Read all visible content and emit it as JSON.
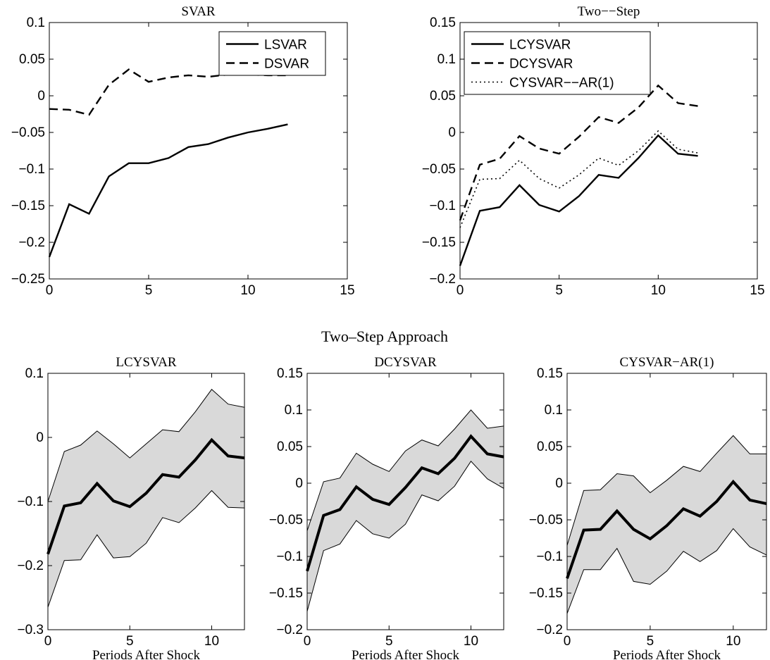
{
  "figure_title": "Two–Step Approach",
  "chart_data": [
    {
      "type": "line",
      "title": "SVAR",
      "xlabel": "",
      "ylabel": "",
      "xlim": [
        0,
        15
      ],
      "ylim": [
        -0.25,
        0.1
      ],
      "xticks": [
        0,
        5,
        10,
        15
      ],
      "xtick_labels": [
        "0",
        "5",
        "10",
        "15"
      ],
      "yticks": [
        -0.25,
        -0.2,
        -0.15,
        -0.1,
        -0.05,
        0,
        0.05,
        0.1
      ],
      "ytick_labels": [
        "−0.25",
        "−0.2",
        "−0.15",
        "−0.1",
        "−0.05",
        "0",
        "0.05",
        "0.1"
      ],
      "legend_position": "top-right",
      "x": [
        0,
        1,
        2,
        3,
        4,
        5,
        6,
        7,
        8,
        9,
        10,
        11,
        12
      ],
      "series": [
        {
          "name": "LSVAR",
          "style": "solid",
          "values": [
            -0.22,
            -0.148,
            -0.161,
            -0.11,
            -0.092,
            -0.092,
            -0.085,
            -0.07,
            -0.066,
            -0.057,
            -0.05,
            -0.045,
            -0.039
          ]
        },
        {
          "name": "DSVAR",
          "style": "dashed",
          "values": [
            -0.018,
            -0.019,
            -0.026,
            0.015,
            0.036,
            0.019,
            0.025,
            0.028,
            0.026,
            0.029,
            0.029,
            0.028,
            0.028
          ]
        }
      ]
    },
    {
      "type": "line",
      "title": "Two−−Step",
      "xlabel": "",
      "ylabel": "",
      "xlim": [
        0,
        15
      ],
      "ylim": [
        -0.2,
        0.15
      ],
      "xticks": [
        0,
        5,
        10,
        15
      ],
      "xtick_labels": [
        "0",
        "5",
        "10",
        "15"
      ],
      "yticks": [
        -0.2,
        -0.15,
        -0.1,
        -0.05,
        0,
        0.05,
        0.1,
        0.15
      ],
      "ytick_labels": [
        "−0.2",
        "−0.15",
        "−0.1",
        "−0.05",
        "0",
        "0.05",
        "0.1",
        "0.15"
      ],
      "legend_position": "top-left",
      "x": [
        0,
        1,
        2,
        3,
        4,
        5,
        6,
        7,
        8,
        9,
        10,
        11,
        12
      ],
      "series": [
        {
          "name": "LCYSVAR",
          "style": "solid",
          "values": [
            -0.182,
            -0.107,
            -0.102,
            -0.072,
            -0.099,
            -0.108,
            -0.087,
            -0.058,
            -0.062,
            -0.035,
            -0.004,
            -0.029,
            -0.032
          ]
        },
        {
          "name": "DCYSVAR",
          "style": "dashed",
          "values": [
            -0.12,
            -0.044,
            -0.036,
            -0.005,
            -0.022,
            -0.029,
            -0.006,
            0.021,
            0.013,
            0.034,
            0.064,
            0.04,
            0.036
          ]
        },
        {
          "name": "CYSVAR−−AR(1)",
          "style": "dotted",
          "values": [
            -0.13,
            -0.064,
            -0.063,
            -0.038,
            -0.063,
            -0.076,
            -0.058,
            -0.035,
            -0.045,
            -0.025,
            0.002,
            -0.023,
            -0.028
          ]
        }
      ]
    },
    {
      "type": "area",
      "title": "LCYSVAR",
      "xlabel": "Periods After Shock",
      "ylabel": "",
      "xlim": [
        0,
        12
      ],
      "ylim": [
        -0.3,
        0.1
      ],
      "xticks": [
        0,
        5,
        10
      ],
      "xtick_labels": [
        "0",
        "5",
        "10"
      ],
      "yticks": [
        -0.3,
        -0.2,
        -0.1,
        0,
        0.1
      ],
      "ytick_labels": [
        "−0.3",
        "−0.2",
        "−0.1",
        "0",
        "0.1"
      ],
      "x": [
        0,
        1,
        2,
        3,
        4,
        5,
        6,
        7,
        8,
        9,
        10,
        11,
        12
      ],
      "line": [
        -0.182,
        -0.107,
        -0.102,
        -0.072,
        -0.099,
        -0.108,
        -0.087,
        -0.058,
        -0.062,
        -0.035,
        -0.004,
        -0.029,
        -0.032
      ],
      "upper": [
        -0.1,
        -0.022,
        -0.012,
        0.01,
        -0.01,
        -0.032,
        -0.01,
        0.012,
        0.009,
        0.04,
        0.075,
        0.052,
        0.047
      ],
      "lower": [
        -0.265,
        -0.192,
        -0.191,
        -0.152,
        -0.188,
        -0.186,
        -0.165,
        -0.125,
        -0.133,
        -0.11,
        -0.083,
        -0.109,
        -0.11
      ]
    },
    {
      "type": "area",
      "title": "DCYSVAR",
      "xlabel": "Periods After Shock",
      "ylabel": "",
      "xlim": [
        0,
        12
      ],
      "ylim": [
        -0.2,
        0.15
      ],
      "xticks": [
        0,
        5,
        10
      ],
      "xtick_labels": [
        "0",
        "5",
        "10"
      ],
      "yticks": [
        -0.2,
        -0.15,
        -0.1,
        -0.05,
        0,
        0.05,
        0.1,
        0.15
      ],
      "ytick_labels": [
        "−0.2",
        "−0.15",
        "−0.1",
        "−0.05",
        "0",
        "0.05",
        "0.1",
        "0.15"
      ],
      "x": [
        0,
        1,
        2,
        3,
        4,
        5,
        6,
        7,
        8,
        9,
        10,
        11,
        12
      ],
      "line": [
        -0.12,
        -0.044,
        -0.036,
        -0.005,
        -0.022,
        -0.029,
        -0.006,
        0.021,
        0.013,
        0.034,
        0.064,
        0.04,
        0.036
      ],
      "upper": [
        -0.065,
        0.002,
        0.007,
        0.041,
        0.026,
        0.016,
        0.044,
        0.059,
        0.051,
        0.074,
        0.1,
        0.075,
        0.078
      ],
      "lower": [
        -0.175,
        -0.092,
        -0.083,
        -0.051,
        -0.069,
        -0.075,
        -0.056,
        -0.016,
        -0.024,
        -0.004,
        0.03,
        0.006,
        -0.007
      ]
    },
    {
      "type": "area",
      "title": "CYSVAR−AR(1)",
      "xlabel": "Periods After Shock",
      "ylabel": "",
      "xlim": [
        0,
        12
      ],
      "ylim": [
        -0.2,
        0.15
      ],
      "xticks": [
        0,
        5,
        10
      ],
      "xtick_labels": [
        "0",
        "5",
        "10"
      ],
      "yticks": [
        -0.2,
        -0.15,
        -0.1,
        -0.05,
        0,
        0.05,
        0.1,
        0.15
      ],
      "ytick_labels": [
        "−0.2",
        "−0.15",
        "−0.1",
        "−0.05",
        "0",
        "0.05",
        "0.1",
        "0.15"
      ],
      "x": [
        0,
        1,
        2,
        3,
        4,
        5,
        6,
        7,
        8,
        9,
        10,
        11,
        12
      ],
      "line": [
        -0.13,
        -0.064,
        -0.063,
        -0.038,
        -0.063,
        -0.076,
        -0.058,
        -0.035,
        -0.045,
        -0.025,
        0.002,
        -0.023,
        -0.028
      ],
      "upper": [
        -0.085,
        -0.01,
        -0.009,
        0.013,
        0.01,
        -0.013,
        0.004,
        0.023,
        0.016,
        0.041,
        0.065,
        0.04,
        0.04
      ],
      "lower": [
        -0.178,
        -0.118,
        -0.118,
        -0.089,
        -0.134,
        -0.138,
        -0.12,
        -0.093,
        -0.107,
        -0.092,
        -0.062,
        -0.087,
        -0.098
      ]
    }
  ]
}
